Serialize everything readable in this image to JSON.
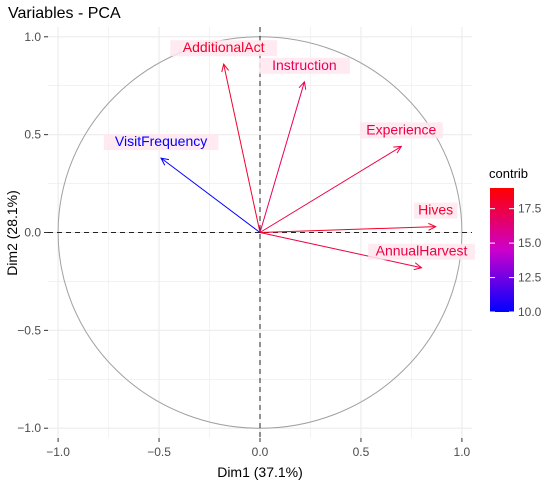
{
  "chart_data": {
    "type": "scatter",
    "subtype": "pca-variable-correlation-circle",
    "title": "Variables - PCA",
    "xlabel": "Dim1 (37.1%)",
    "ylabel": "Dim2 (28.1%)",
    "xlim": [
      -1.05,
      1.05
    ],
    "ylim": [
      -1.05,
      1.05
    ],
    "x_ticks": [
      -1.0,
      -0.5,
      0.0,
      0.5,
      1.0
    ],
    "y_ticks": [
      -1.0,
      -0.5,
      0.0,
      0.5,
      1.0
    ],
    "x_tick_labels": [
      "−1.0",
      "−0.5",
      "0.0",
      "0.5",
      "1.0"
    ],
    "y_tick_labels": [
      "−1.0",
      "−0.5",
      "0.0",
      "0.5",
      "1.0"
    ],
    "grid": true,
    "unit_circle": true,
    "reference_lines": [
      "x=0 dashed",
      "y=0 dashed"
    ],
    "series": [
      {
        "label": "AdditionalAct",
        "x": -0.18,
        "y": 0.86,
        "contrib": 18.0
      },
      {
        "label": "Instruction",
        "x": 0.22,
        "y": 0.77,
        "contrib": 17.0
      },
      {
        "label": "Experience",
        "x": 0.7,
        "y": 0.44,
        "contrib": 17.5
      },
      {
        "label": "Hives",
        "x": 0.87,
        "y": 0.03,
        "contrib": 18.0
      },
      {
        "label": "AnnualHarvest",
        "x": 0.8,
        "y": -0.18,
        "contrib": 17.5
      },
      {
        "label": "VisitFrequency",
        "x": -0.49,
        "y": 0.38,
        "contrib": 10.0
      }
    ],
    "legend": {
      "title": "contrib",
      "placement": "right",
      "min": 10.0,
      "max": 19.0,
      "ticks": [
        10.0,
        12.5,
        15.0,
        17.5
      ],
      "tick_labels": [
        "10.0",
        "12.5",
        "15.0",
        "17.5"
      ],
      "colors": {
        "low": "#0000ff",
        "mid": "#cc00cc",
        "high": "#ff0000"
      }
    },
    "colors": {
      "grid": "#ebebeb",
      "circle": "#a0a0a0",
      "reference_line": "#222222",
      "axis_text": "#4d4d4d",
      "label_background": "#ffe6ee"
    }
  }
}
